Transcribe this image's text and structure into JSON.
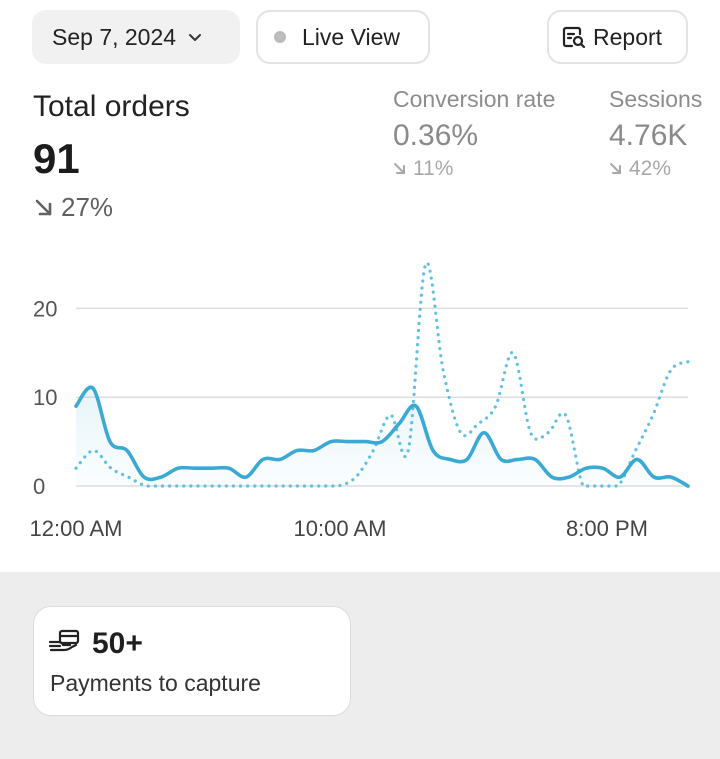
{
  "header": {
    "date_label": "Sep 7, 2024",
    "live_label": "Live View",
    "report_label": "Report",
    "icons": [
      "chevron-down-icon",
      "dot-icon",
      "report-search-icon"
    ]
  },
  "primary_metric": {
    "title": "Total orders",
    "value": "91",
    "change": "27%",
    "direction": "down"
  },
  "secondary_metrics": [
    {
      "label": "Conversion rate",
      "value": "0.36%",
      "change": "11%",
      "direction": "down"
    },
    {
      "label": "Sessions",
      "value": "4.76K",
      "change": "42%",
      "direction": "down"
    }
  ],
  "chart_data": {
    "type": "line",
    "x_tick_labels": [
      "12:00 AM",
      "10:00 AM",
      "8:00 PM"
    ],
    "y_ticks": [
      0,
      10,
      20
    ],
    "ylim": [
      0,
      25
    ],
    "grid": true,
    "series": [
      {
        "style": "solid",
        "color": "#3aa9d3",
        "values": [
          9,
          11,
          5,
          4,
          1,
          1,
          2,
          2,
          2,
          2,
          1,
          3,
          3,
          4,
          4,
          5,
          5,
          5,
          5,
          7,
          9,
          4,
          3,
          3,
          6,
          3,
          3,
          3,
          1,
          1,
          2,
          2,
          1,
          3,
          1,
          1,
          0
        ]
      },
      {
        "style": "dotted",
        "color": "#62c0e2",
        "values": [
          2,
          4,
          2,
          1,
          0,
          0,
          0,
          0,
          0,
          0,
          0,
          0,
          0,
          0,
          0,
          0,
          1,
          4,
          8,
          4,
          25,
          13,
          6,
          7,
          9,
          15,
          6,
          6,
          8,
          0,
          0,
          0,
          4,
          8,
          13,
          14
        ]
      }
    ]
  },
  "payments_card": {
    "icon": "hand-card-icon",
    "count": "50+",
    "label": "Payments to capture"
  }
}
